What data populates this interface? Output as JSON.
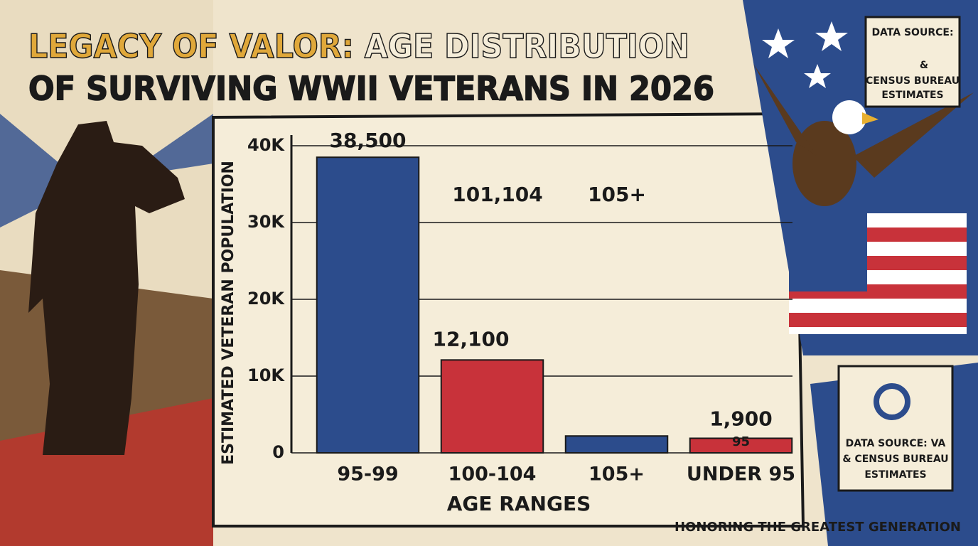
{
  "chart_data": {
    "type": "bar",
    "title_lines": [
      "LEGACY OF VALOR:",
      "AGE DISTRIBUTION",
      "OF SURVIVING WWII VETERANS IN 2026"
    ],
    "y_label": "ESTIMATED VETERAN POPULATION",
    "x_label": "AGE RANGES",
    "categories": [
      "95-99",
      "100-104",
      "105+",
      "UNDER 95"
    ],
    "values": [
      38500,
      12100,
      2200,
      1900
    ],
    "value_labels": [
      "38,500",
      "12,100",
      null,
      "1,900"
    ],
    "colors": [
      "#2c4c8c",
      "#c8323a",
      "#2c4c8c",
      "#c8323a"
    ],
    "ylim": [
      0,
      40000
    ],
    "yticks": [
      0,
      {
        "value": 10000,
        "label": "10K"
      },
      {
        "value": 20000,
        "label": "20K"
      },
      {
        "value": 30000,
        "label": "30K"
      },
      {
        "value": 40000,
        "label": "40K"
      }
    ],
    "grid": true,
    "annotations": [
      "101,104",
      "105+",
      "95"
    ],
    "source_top": [
      "DATA SOURCE:",
      "&",
      "CENSUS BUREAU",
      "ESTIMATES"
    ],
    "source_bottom": [
      "DATA SOURCE: VA",
      "& CENSUS BUREAU",
      "ESTIMATES"
    ],
    "footer": "HONORING THE GREATEST GENERATION"
  }
}
